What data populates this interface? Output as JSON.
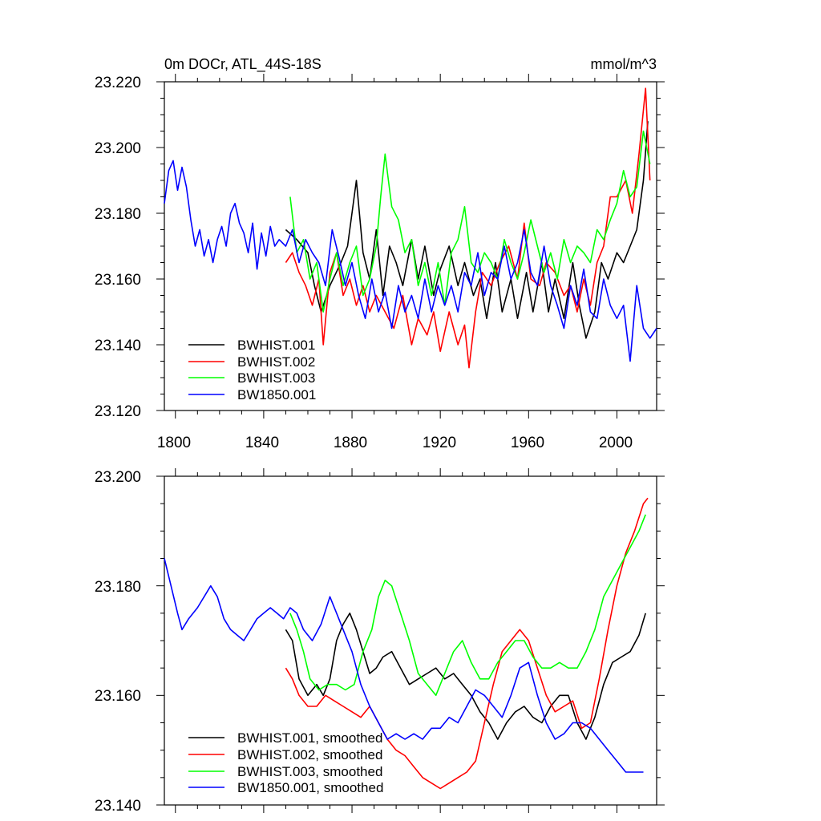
{
  "colors": {
    "BWHIST.001": "#000000",
    "BWHIST.002": "#ff0000",
    "BWHIST.003": "#00ff00",
    "BW1850.001": "#0000ff"
  },
  "chart_data": [
    {
      "type": "line",
      "title": "0m DOCr, ATL_44S-18S",
      "units": "mmol/m^3",
      "xlim": [
        1795,
        2018
      ],
      "ylim": [
        23.12,
        23.22
      ],
      "xticks": [
        "1800",
        "1840",
        "1880",
        "1920",
        "1960",
        "2000"
      ],
      "yticks": [
        "23.120",
        "23.140",
        "23.160",
        "23.180",
        "23.200",
        "23.220"
      ],
      "legend": "bottom-left",
      "series": [
        {
          "name": "BWHIST.001",
          "x": [
            1850,
            1855,
            1860,
            1863,
            1866,
            1870,
            1875,
            1878,
            1882,
            1885,
            1888,
            1891,
            1894,
            1897,
            1900,
            1903,
            1907,
            1910,
            1913,
            1917,
            1920,
            1924,
            1928,
            1931,
            1935,
            1938,
            1941,
            1945,
            1948,
            1952,
            1955,
            1959,
            1962,
            1966,
            1969,
            1972,
            1976,
            1980,
            1983,
            1986,
            1990,
            1993,
            1996,
            2000,
            2003,
            2006,
            2009,
            2012,
            2014
          ],
          "y": [
            23.175,
            23.172,
            23.168,
            23.158,
            23.15,
            23.158,
            23.165,
            23.17,
            23.19,
            23.168,
            23.16,
            23.175,
            23.155,
            23.17,
            23.165,
            23.158,
            23.172,
            23.16,
            23.17,
            23.155,
            23.163,
            23.17,
            23.158,
            23.165,
            23.155,
            23.16,
            23.148,
            23.165,
            23.15,
            23.16,
            23.148,
            23.162,
            23.15,
            23.165,
            23.15,
            23.16,
            23.148,
            23.165,
            23.152,
            23.142,
            23.15,
            23.165,
            23.16,
            23.168,
            23.165,
            23.17,
            23.175,
            23.19,
            23.208
          ]
        },
        {
          "name": "BWHIST.002",
          "x": [
            1850,
            1853,
            1856,
            1859,
            1862,
            1865,
            1867,
            1870,
            1873,
            1876,
            1879,
            1882,
            1885,
            1888,
            1891,
            1895,
            1899,
            1903,
            1907,
            1910,
            1914,
            1917,
            1920,
            1924,
            1928,
            1931,
            1933,
            1936,
            1939,
            1943,
            1947,
            1951,
            1955,
            1958,
            1961,
            1965,
            1968,
            1972,
            1976,
            1979,
            1982,
            1985,
            1988,
            1991,
            1994,
            1997,
            2000,
            2004,
            2007,
            2010,
            2013,
            2015
          ],
          "y": [
            23.165,
            23.168,
            23.162,
            23.158,
            23.152,
            23.16,
            23.14,
            23.162,
            23.168,
            23.155,
            23.16,
            23.152,
            23.158,
            23.15,
            23.155,
            23.15,
            23.145,
            23.155,
            23.14,
            23.148,
            23.143,
            23.15,
            23.138,
            23.15,
            23.14,
            23.146,
            23.133,
            23.15,
            23.162,
            23.158,
            23.165,
            23.17,
            23.16,
            23.177,
            23.16,
            23.158,
            23.165,
            23.162,
            23.155,
            23.158,
            23.15,
            23.16,
            23.152,
            23.165,
            23.17,
            23.185,
            23.185,
            23.19,
            23.18,
            23.198,
            23.218,
            23.19
          ]
        },
        {
          "name": "BWHIST.003",
          "x": [
            1852,
            1855,
            1858,
            1861,
            1864,
            1867,
            1870,
            1873,
            1876,
            1879,
            1882,
            1885,
            1888,
            1891,
            1893,
            1895,
            1898,
            1901,
            1904,
            1907,
            1910,
            1913,
            1916,
            1919,
            1922,
            1925,
            1928,
            1931,
            1934,
            1937,
            1940,
            1943,
            1946,
            1949,
            1952,
            1955,
            1958,
            1961,
            1964,
            1967,
            1970,
            1973,
            1976,
            1979,
            1982,
            1985,
            1988,
            1991,
            1994,
            1997,
            2000,
            2003,
            2006,
            2009,
            2012,
            2015
          ],
          "y": [
            23.185,
            23.168,
            23.172,
            23.16,
            23.165,
            23.15,
            23.16,
            23.168,
            23.158,
            23.165,
            23.17,
            23.155,
            23.16,
            23.17,
            23.185,
            23.198,
            23.182,
            23.178,
            23.168,
            23.172,
            23.158,
            23.165,
            23.155,
            23.165,
            23.152,
            23.168,
            23.172,
            23.182,
            23.165,
            23.162,
            23.168,
            23.165,
            23.16,
            23.172,
            23.165,
            23.16,
            23.168,
            23.178,
            23.17,
            23.162,
            23.168,
            23.16,
            23.172,
            23.165,
            23.17,
            23.168,
            23.165,
            23.175,
            23.172,
            23.178,
            23.183,
            23.193,
            23.185,
            23.188,
            23.205,
            23.195
          ]
        },
        {
          "name": "BW1850.001",
          "x": [
            1795,
            1797,
            1799,
            1801,
            1803,
            1805,
            1807,
            1809,
            1811,
            1813,
            1815,
            1817,
            1819,
            1821,
            1823,
            1825,
            1827,
            1829,
            1831,
            1833,
            1835,
            1837,
            1839,
            1841,
            1843,
            1845,
            1847,
            1850,
            1853,
            1856,
            1859,
            1862,
            1865,
            1868,
            1871,
            1874,
            1877,
            1880,
            1883,
            1886,
            1889,
            1892,
            1895,
            1898,
            1901,
            1904,
            1907,
            1910,
            1913,
            1916,
            1919,
            1922,
            1925,
            1928,
            1931,
            1934,
            1937,
            1940,
            1943,
            1946,
            1949,
            1952,
            1955,
            1958,
            1961,
            1964,
            1967,
            1970,
            1973,
            1976,
            1979,
            1982,
            1985,
            1988,
            1991,
            1994,
            1997,
            2000,
            2003,
            2006,
            2009,
            2012,
            2015,
            2018
          ],
          "y": [
            23.183,
            23.193,
            23.196,
            23.187,
            23.194,
            23.188,
            23.178,
            23.17,
            23.175,
            23.167,
            23.172,
            23.165,
            23.172,
            23.176,
            23.17,
            23.18,
            23.183,
            23.177,
            23.174,
            23.168,
            23.177,
            23.163,
            23.174,
            23.167,
            23.176,
            23.17,
            23.172,
            23.17,
            23.175,
            23.165,
            23.172,
            23.168,
            23.165,
            23.158,
            23.175,
            23.167,
            23.158,
            23.165,
            23.155,
            23.148,
            23.16,
            23.15,
            23.156,
            23.145,
            23.158,
            23.15,
            23.155,
            23.148,
            23.16,
            23.15,
            23.158,
            23.152,
            23.158,
            23.15,
            23.162,
            23.158,
            23.168,
            23.155,
            23.162,
            23.16,
            23.17,
            23.16,
            23.165,
            23.175,
            23.162,
            23.158,
            23.17,
            23.158,
            23.152,
            23.145,
            23.158,
            23.152,
            23.163,
            23.15,
            23.148,
            23.16,
            23.152,
            23.148,
            23.152,
            23.135,
            23.158,
            23.145,
            23.142,
            23.145
          ]
        }
      ]
    },
    {
      "type": "line",
      "xlim": [
        1795,
        2018
      ],
      "ylim": [
        23.14,
        23.2
      ],
      "yticks": [
        "23.140",
        "23.160",
        "23.180",
        "23.200"
      ],
      "legend": "bottom-left",
      "series": [
        {
          "name": "BWHIST.001, smoothed",
          "x": [
            1850,
            1853,
            1856,
            1860,
            1864,
            1867,
            1870,
            1873,
            1876,
            1879,
            1882,
            1885,
            1888,
            1891,
            1894,
            1898,
            1902,
            1906,
            1910,
            1914,
            1918,
            1922,
            1926,
            1930,
            1934,
            1938,
            1942,
            1946,
            1950,
            1954,
            1958,
            1962,
            1966,
            1970,
            1974,
            1978,
            1982,
            1986,
            1990,
            1994,
            1998,
            2002,
            2006,
            2010,
            2013
          ],
          "y": [
            23.172,
            23.17,
            23.163,
            23.16,
            23.162,
            23.16,
            23.163,
            23.17,
            23.173,
            23.175,
            23.172,
            23.168,
            23.164,
            23.165,
            23.167,
            23.168,
            23.165,
            23.162,
            23.163,
            23.164,
            23.165,
            23.163,
            23.164,
            23.162,
            23.16,
            23.157,
            23.155,
            23.152,
            23.155,
            23.157,
            23.158,
            23.156,
            23.155,
            23.158,
            23.16,
            23.16,
            23.155,
            23.152,
            23.156,
            23.162,
            23.166,
            23.167,
            23.168,
            23.171,
            23.175
          ]
        },
        {
          "name": "BWHIST.002, smoothed",
          "x": [
            1850,
            1853,
            1856,
            1860,
            1864,
            1868,
            1872,
            1876,
            1880,
            1884,
            1888,
            1892,
            1896,
            1900,
            1904,
            1908,
            1912,
            1916,
            1920,
            1924,
            1928,
            1932,
            1936,
            1940,
            1944,
            1948,
            1952,
            1956,
            1960,
            1964,
            1968,
            1972,
            1976,
            1980,
            1984,
            1988,
            1992,
            1996,
            2000,
            2004,
            2008,
            2012,
            2014
          ],
          "y": [
            23.165,
            23.163,
            23.16,
            23.158,
            23.158,
            23.16,
            23.159,
            23.158,
            23.157,
            23.156,
            23.158,
            23.155,
            23.152,
            23.15,
            23.149,
            23.147,
            23.145,
            23.144,
            23.143,
            23.144,
            23.145,
            23.146,
            23.148,
            23.155,
            23.162,
            23.168,
            23.17,
            23.172,
            23.17,
            23.165,
            23.16,
            23.157,
            23.158,
            23.159,
            23.154,
            23.155,
            23.163,
            23.172,
            23.18,
            23.186,
            23.19,
            23.195,
            23.196
          ]
        },
        {
          "name": "BWHIST.003, smoothed",
          "x": [
            1852,
            1855,
            1858,
            1861,
            1865,
            1869,
            1873,
            1877,
            1881,
            1885,
            1889,
            1892,
            1895,
            1898,
            1902,
            1906,
            1910,
            1914,
            1918,
            1922,
            1926,
            1930,
            1934,
            1938,
            1942,
            1946,
            1950,
            1954,
            1958,
            1962,
            1966,
            1970,
            1974,
            1978,
            1982,
            1986,
            1990,
            1994,
            1998,
            2002,
            2006,
            2010,
            2013
          ],
          "y": [
            23.175,
            23.172,
            23.168,
            23.163,
            23.161,
            23.162,
            23.162,
            23.161,
            23.162,
            23.168,
            23.172,
            23.178,
            23.181,
            23.18,
            23.175,
            23.17,
            23.164,
            23.162,
            23.16,
            23.164,
            23.168,
            23.17,
            23.166,
            23.163,
            23.163,
            23.166,
            23.168,
            23.17,
            23.17,
            23.167,
            23.165,
            23.165,
            23.166,
            23.165,
            23.165,
            23.168,
            23.172,
            23.178,
            23.181,
            23.184,
            23.187,
            23.19,
            23.193
          ]
        },
        {
          "name": "BW1850.001, smoothed",
          "x": [
            1795,
            1798,
            1801,
            1803,
            1806,
            1810,
            1813,
            1816,
            1819,
            1822,
            1825,
            1828,
            1831,
            1834,
            1837,
            1840,
            1843,
            1846,
            1849,
            1852,
            1855,
            1858,
            1862,
            1866,
            1870,
            1873,
            1876,
            1880,
            1884,
            1888,
            1892,
            1896,
            1900,
            1904,
            1908,
            1912,
            1916,
            1920,
            1924,
            1928,
            1932,
            1936,
            1940,
            1944,
            1948,
            1952,
            1956,
            1960,
            1964,
            1968,
            1972,
            1976,
            1980,
            1984,
            1988,
            1992,
            1996,
            2000,
            2004,
            2008,
            2012
          ],
          "y": [
            23.185,
            23.18,
            23.175,
            23.172,
            23.174,
            23.176,
            23.178,
            23.18,
            23.178,
            23.174,
            23.172,
            23.171,
            23.17,
            23.172,
            23.174,
            23.175,
            23.176,
            23.175,
            23.174,
            23.176,
            23.175,
            23.172,
            23.17,
            23.173,
            23.178,
            23.175,
            23.172,
            23.168,
            23.162,
            23.158,
            23.155,
            23.152,
            23.153,
            23.152,
            23.153,
            23.152,
            23.154,
            23.154,
            23.156,
            23.155,
            23.158,
            23.161,
            23.16,
            23.158,
            23.156,
            23.16,
            23.165,
            23.166,
            23.16,
            23.155,
            23.152,
            23.153,
            23.155,
            23.155,
            23.154,
            23.152,
            23.15,
            23.148,
            23.146,
            23.146,
            23.146
          ]
        }
      ]
    }
  ]
}
